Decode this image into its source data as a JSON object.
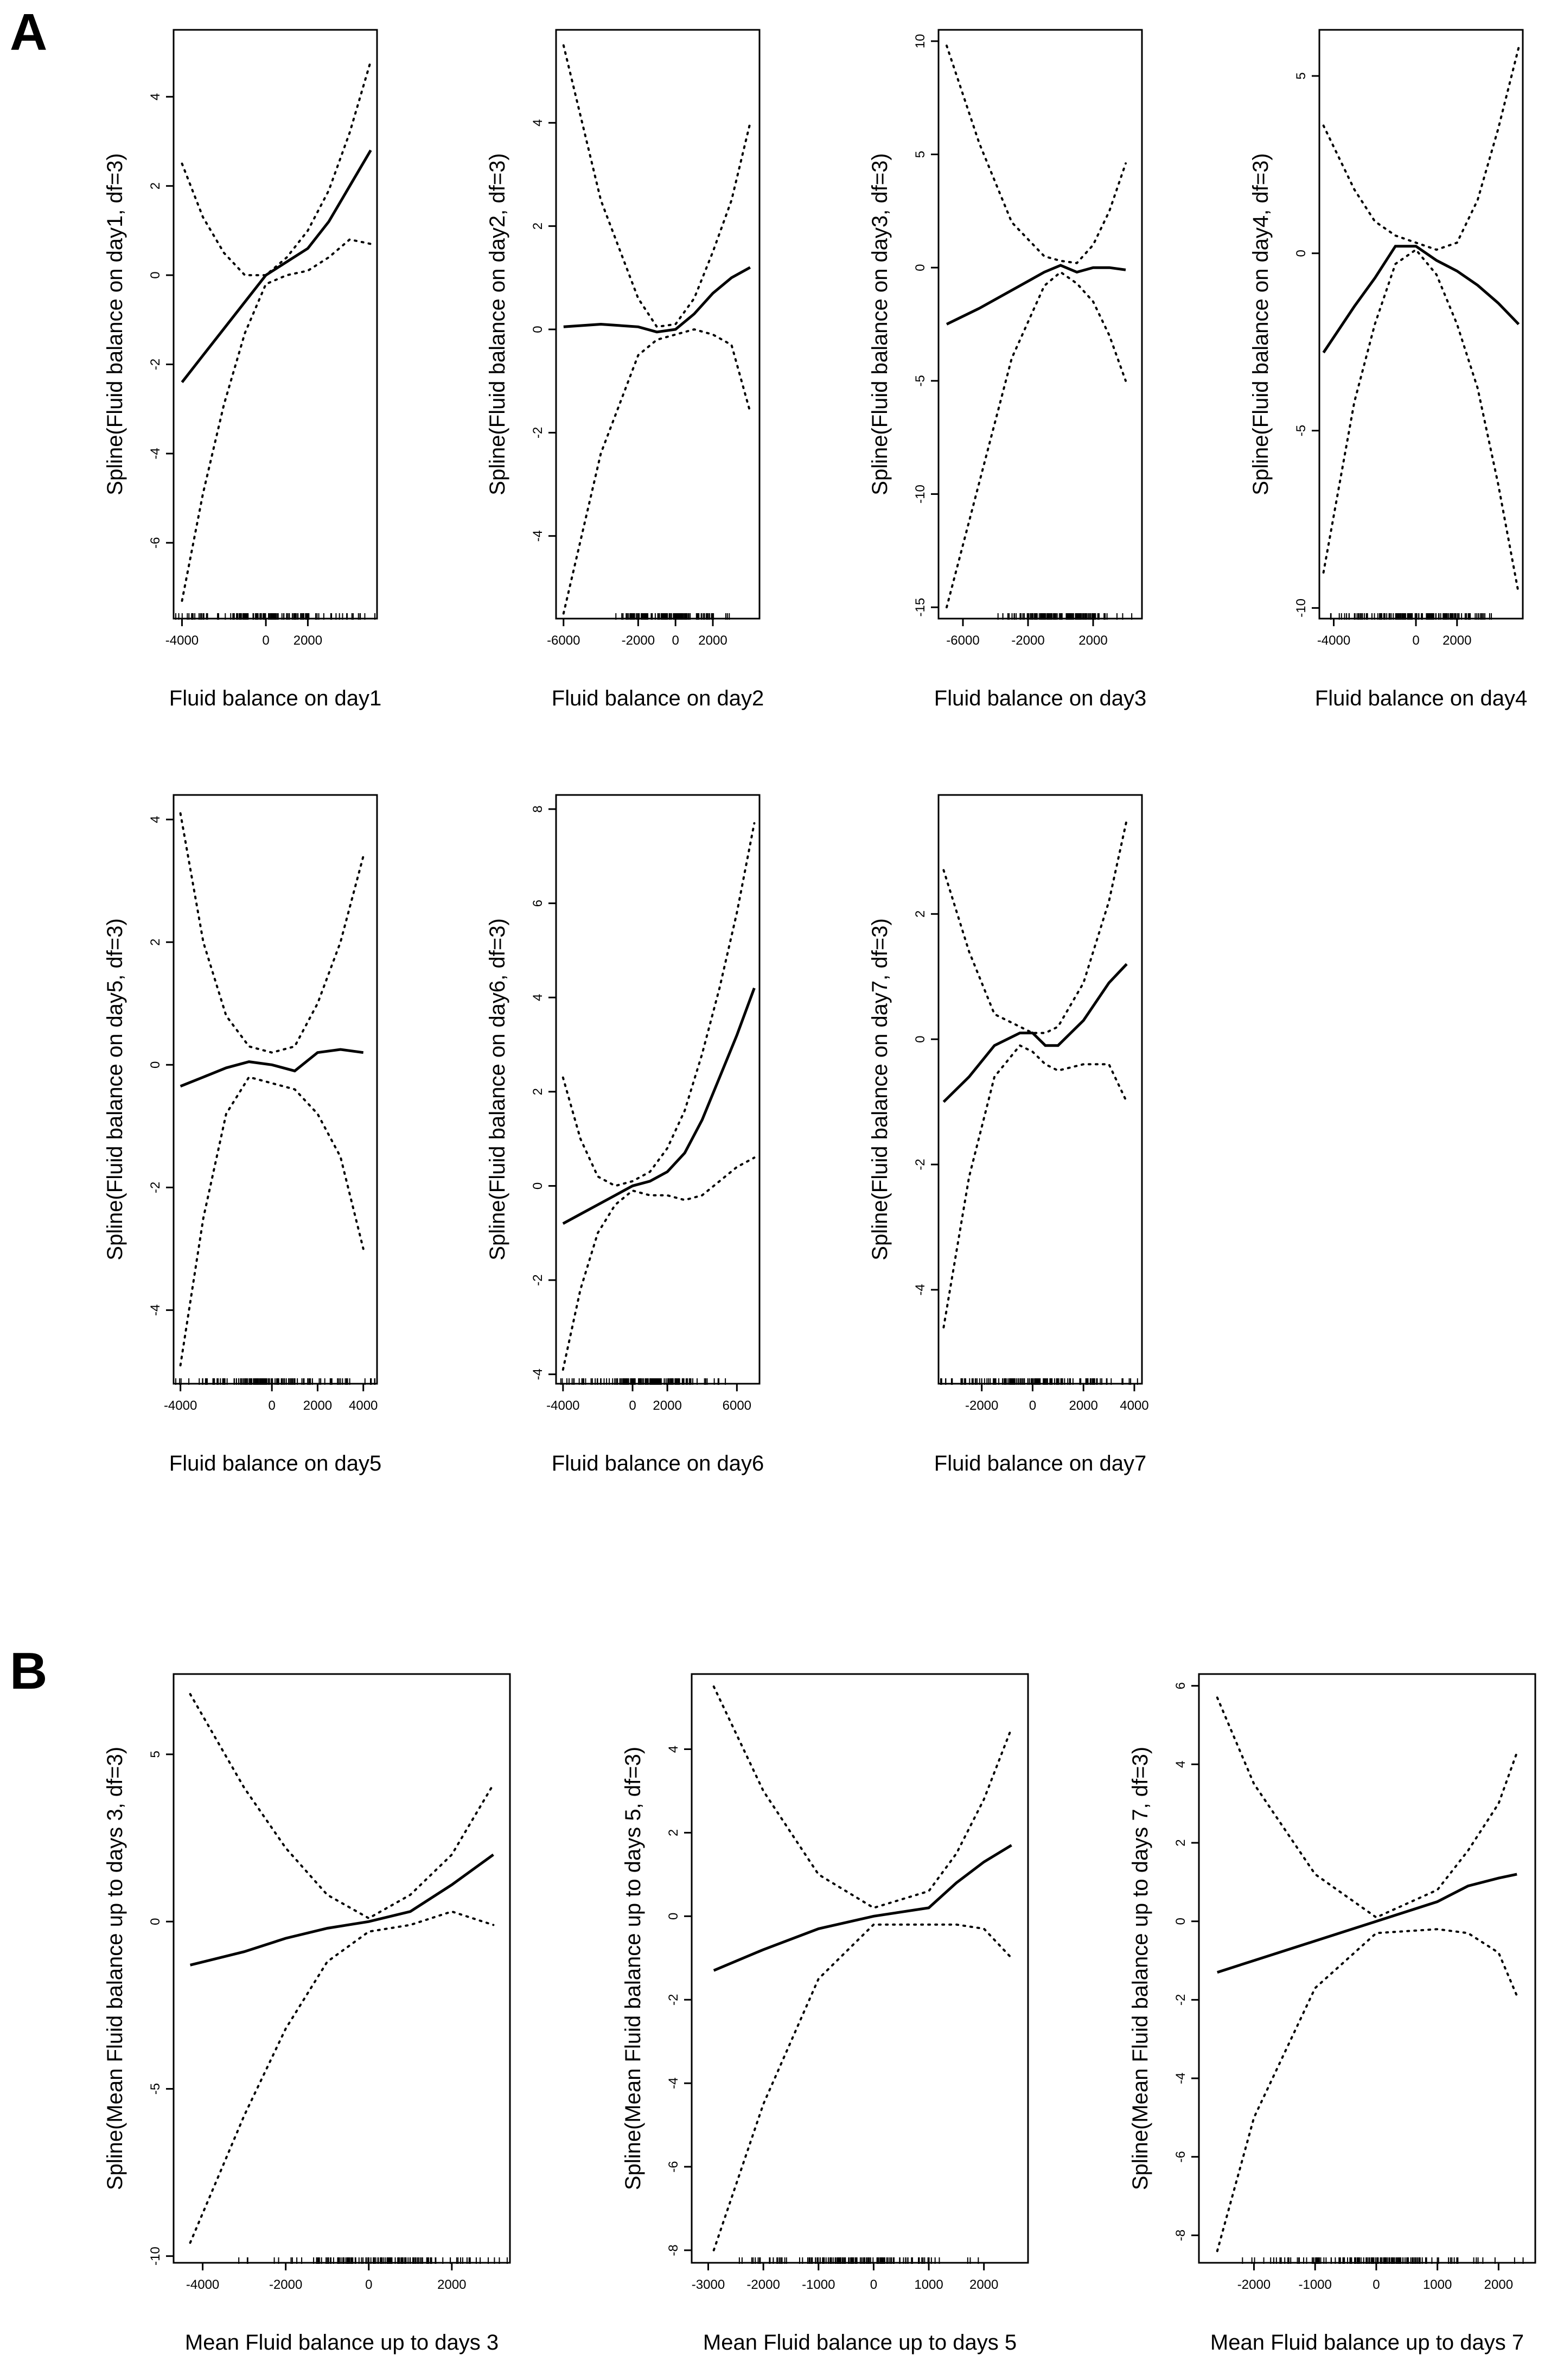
{
  "panel_labels": [
    "A",
    "B"
  ],
  "chart_data": [
    {
      "type": "line",
      "panel": "A",
      "xlabel": "Fluid balance on day1",
      "ylabel": "Spline(Fluid balance on day1, df=3)",
      "xlim": [
        -4400,
        5300
      ],
      "ylim": [
        -7.7,
        5.5
      ],
      "xticks": [
        -4000,
        0,
        2000
      ],
      "xtick_labels": [
        "-4000",
        "0",
        "2000"
      ],
      "yticks": [
        -6,
        -4,
        -2,
        0,
        2,
        4
      ],
      "ytick_labels": [
        "-6",
        "-4",
        "-2",
        "0",
        "2",
        "4"
      ],
      "x": [
        -4000,
        -3000,
        -2000,
        -1000,
        0,
        1000,
        2000,
        3000,
        4000,
        5000
      ],
      "fit": [
        -2.4,
        -1.8,
        -1.2,
        -0.6,
        0.0,
        0.3,
        0.6,
        1.2,
        2.0,
        2.8
      ],
      "upper": [
        2.5,
        1.3,
        0.5,
        0.0,
        0.0,
        0.4,
        1.0,
        1.9,
        3.2,
        4.8
      ],
      "lower": [
        -7.3,
        -4.9,
        -2.9,
        -1.3,
        -0.2,
        0.0,
        0.1,
        0.4,
        0.8,
        0.7
      ],
      "rug_range": [
        -4000,
        4800
      ]
    },
    {
      "type": "line",
      "panel": "A",
      "xlabel": "Fluid balance on day2",
      "ylabel": "Spline(Fluid balance on day2, df=3)",
      "xlim": [
        -6400,
        4500
      ],
      "ylim": [
        -5.6,
        5.8
      ],
      "xticks": [
        -6000,
        -2000,
        0,
        2000
      ],
      "xtick_labels": [
        "-6000",
        "-2000",
        "0",
        "2000"
      ],
      "yticks": [
        -4,
        -2,
        0,
        2,
        4
      ],
      "ytick_labels": [
        "-4",
        "-2",
        "0",
        "2",
        "4"
      ],
      "x": [
        -6000,
        -4000,
        -2000,
        -1000,
        0,
        1000,
        2000,
        3000,
        4000
      ],
      "fit": [
        0.05,
        0.1,
        0.05,
        -0.05,
        0.0,
        0.3,
        0.7,
        1.0,
        1.2
      ],
      "upper": [
        5.5,
        2.5,
        0.6,
        0.05,
        0.1,
        0.6,
        1.5,
        2.5,
        4.0
      ],
      "lower": [
        -5.5,
        -2.4,
        -0.5,
        -0.2,
        -0.1,
        0.0,
        -0.1,
        -0.3,
        -1.6
      ],
      "rug_range": [
        -2500,
        2500
      ]
    },
    {
      "type": "line",
      "panel": "A",
      "xlabel": "Fluid balance on day3",
      "ylabel": "Spline(Fluid balance on day3, df=3)",
      "xlim": [
        -7500,
        5000
      ],
      "ylim": [
        -15.5,
        10.5
      ],
      "xticks": [
        -6000,
        -2000,
        2000
      ],
      "xtick_labels": [
        "-6000",
        "-2000",
        "2000"
      ],
      "yticks": [
        -15,
        -10,
        -5,
        0,
        5,
        10
      ],
      "ytick_labels": [
        "-15",
        "-10",
        "-5",
        "0",
        "5",
        "10"
      ],
      "x": [
        -7000,
        -5000,
        -3000,
        -1000,
        0,
        1000,
        2000,
        3000,
        4000
      ],
      "fit": [
        -2.5,
        -1.8,
        -1.0,
        -0.2,
        0.1,
        -0.2,
        0.0,
        0.0,
        -0.1
      ],
      "upper": [
        9.8,
        5.5,
        2.0,
        0.5,
        0.3,
        0.2,
        1.0,
        2.5,
        4.6
      ],
      "lower": [
        -15.0,
        -9.5,
        -4.0,
        -0.8,
        -0.2,
        -0.7,
        -1.5,
        -3.0,
        -5.0
      ],
      "rug_range": [
        -3500,
        3500
      ]
    },
    {
      "type": "line",
      "panel": "A",
      "xlabel": "Fluid balance on day4",
      "ylabel": "Spline(Fluid balance on day4, df=3)",
      "xlim": [
        -4700,
        5200
      ],
      "ylim": [
        -10.3,
        6.3
      ],
      "xticks": [
        -4000,
        0,
        2000
      ],
      "xtick_labels": [
        "-4000",
        "0",
        "2000"
      ],
      "yticks": [
        -10,
        -5,
        0,
        5
      ],
      "ytick_labels": [
        "-10",
        "-5",
        "0",
        "5"
      ],
      "x": [
        -4500,
        -3000,
        -2000,
        -1000,
        0,
        1000,
        2000,
        3000,
        4000,
        5000
      ],
      "fit": [
        -2.8,
        -1.5,
        -0.7,
        0.2,
        0.2,
        -0.2,
        -0.5,
        -0.9,
        -1.4,
        -2.0
      ],
      "upper": [
        3.6,
        1.8,
        0.9,
        0.5,
        0.3,
        0.1,
        0.3,
        1.5,
        3.5,
        5.8
      ],
      "lower": [
        -9.0,
        -4.2,
        -2.0,
        -0.3,
        0.1,
        -0.6,
        -2.0,
        -3.8,
        -6.5,
        -9.6
      ],
      "rug_range": [
        -3500,
        3500
      ]
    },
    {
      "type": "line",
      "panel": "A",
      "xlabel": "Fluid balance on day5",
      "ylabel": "Spline(Fluid balance on day5, df=3)",
      "xlim": [
        -4300,
        4600
      ],
      "ylim": [
        -5.2,
        4.4
      ],
      "xticks": [
        -4000,
        0,
        2000,
        4000
      ],
      "xtick_labels": [
        "-4000",
        "0",
        "2000",
        "4000"
      ],
      "yticks": [
        -4,
        -2,
        0,
        2,
        4
      ],
      "ytick_labels": [
        "-4",
        "-2",
        "0",
        "2",
        "4"
      ],
      "x": [
        -4000,
        -3000,
        -2000,
        -1000,
        0,
        1000,
        2000,
        3000,
        4000
      ],
      "fit": [
        -0.35,
        -0.2,
        -0.05,
        0.05,
        0.0,
        -0.1,
        0.2,
        0.25,
        0.2
      ],
      "upper": [
        4.1,
        2.0,
        0.8,
        0.3,
        0.2,
        0.3,
        1.0,
        2.0,
        3.4
      ],
      "lower": [
        -4.9,
        -2.5,
        -0.8,
        -0.2,
        -0.3,
        -0.4,
        -0.8,
        -1.5,
        -3.0
      ],
      "rug_range": [
        -4000,
        4000
      ]
    },
    {
      "type": "line",
      "panel": "A",
      "xlabel": "Fluid balance on day6",
      "ylabel": "Spline(Fluid balance on day6, df=3)",
      "xlim": [
        -4400,
        7300
      ],
      "ylim": [
        -4.2,
        8.3
      ],
      "xticks": [
        -4000,
        0,
        2000,
        6000
      ],
      "xtick_labels": [
        "-4000",
        "0",
        "2000",
        "6000"
      ],
      "yticks": [
        -4,
        -2,
        0,
        2,
        4,
        6,
        8
      ],
      "ytick_labels": [
        "-4",
        "-2",
        "0",
        "2",
        "4",
        "6",
        "8"
      ],
      "x": [
        -4000,
        -3000,
        -2000,
        -1000,
        0,
        1000,
        2000,
        3000,
        4000,
        5000,
        6000,
        7000
      ],
      "fit": [
        -0.8,
        -0.6,
        -0.4,
        -0.2,
        0.0,
        0.1,
        0.3,
        0.7,
        1.4,
        2.3,
        3.2,
        4.2
      ],
      "upper": [
        2.3,
        1.0,
        0.2,
        0.0,
        0.1,
        0.3,
        0.8,
        1.6,
        2.8,
        4.2,
        5.8,
        7.7
      ],
      "lower": [
        -3.9,
        -2.2,
        -1.0,
        -0.4,
        -0.1,
        -0.2,
        -0.2,
        -0.3,
        -0.2,
        0.1,
        0.4,
        0.6
      ],
      "rug_range": [
        -3500,
        5000
      ]
    },
    {
      "type": "line",
      "panel": "A",
      "xlabel": "Fluid balance on day7",
      "ylabel": "Spline(Fluid balance on day7, df=3)",
      "xlim": [
        -3700,
        4300
      ],
      "ylim": [
        -5.5,
        3.9
      ],
      "xticks": [
        -2000,
        0,
        2000,
        4000
      ],
      "xtick_labels": [
        "-2000",
        "0",
        "2000",
        "4000"
      ],
      "yticks": [
        -4,
        -2,
        0,
        2
      ],
      "ytick_labels": [
        "-4",
        "-2",
        "0",
        "2"
      ],
      "x": [
        -3500,
        -2500,
        -1500,
        -500,
        0,
        500,
        1000,
        2000,
        3000,
        3700
      ],
      "fit": [
        -1.0,
        -0.6,
        -0.1,
        0.1,
        0.1,
        -0.1,
        -0.1,
        0.3,
        0.9,
        1.2
      ],
      "upper": [
        2.7,
        1.4,
        0.4,
        0.2,
        0.1,
        0.1,
        0.2,
        0.9,
        2.2,
        3.5
      ],
      "lower": [
        -4.6,
        -2.2,
        -0.6,
        -0.1,
        -0.2,
        -0.4,
        -0.5,
        -0.4,
        -0.4,
        -1.0
      ],
      "rug_range": [
        -3500,
        3500
      ]
    },
    {
      "type": "line",
      "panel": "B",
      "xlabel": "Mean Fluid balance up to days 3",
      "ylabel": "Spline(Mean Fluid balance up to days 3, df=3)",
      "xlim": [
        -4700,
        3400
      ],
      "ylim": [
        -10.2,
        7.4
      ],
      "xticks": [
        -4000,
        -2000,
        0,
        2000
      ],
      "xtick_labels": [
        "-4000",
        "-2000",
        "0",
        "2000"
      ],
      "yticks": [
        -10,
        -5,
        0,
        5
      ],
      "ytick_labels": [
        "-10",
        "-5",
        "0",
        "5"
      ],
      "x": [
        -4300,
        -3000,
        -2000,
        -1000,
        0,
        1000,
        2000,
        3000
      ],
      "fit": [
        -1.3,
        -0.9,
        -0.5,
        -0.2,
        0.0,
        0.3,
        1.1,
        2.0
      ],
      "upper": [
        6.8,
        4.0,
        2.2,
        0.8,
        0.1,
        0.8,
        2.0,
        4.1
      ],
      "lower": [
        -9.6,
        -5.8,
        -3.2,
        -1.2,
        -0.3,
        -0.1,
        0.3,
        -0.1
      ],
      "rug_range": [
        -2500,
        3000
      ]
    },
    {
      "type": "line",
      "panel": "B",
      "xlabel": "Mean Fluid balance up to days 5",
      "ylabel": "Spline(Mean Fluid balance up to days 5, df=3)",
      "xlim": [
        -3300,
        2800
      ],
      "ylim": [
        -8.3,
        5.8
      ],
      "xticks": [
        -3000,
        -2000,
        -1000,
        0,
        1000,
        2000
      ],
      "xtick_labels": [
        "-3000",
        "-2000",
        "-1000",
        "0",
        "1000",
        "2000"
      ],
      "yticks": [
        -8,
        -6,
        -4,
        -2,
        0,
        2,
        4
      ],
      "ytick_labels": [
        "-8",
        "-6",
        "-4",
        "-2",
        "0",
        "2",
        "4"
      ],
      "x": [
        -2900,
        -2000,
        -1000,
        0,
        1000,
        1500,
        2000,
        2500
      ],
      "fit": [
        -1.3,
        -0.8,
        -0.3,
        0.0,
        0.2,
        0.8,
        1.3,
        1.7
      ],
      "upper": [
        5.5,
        3.0,
        1.0,
        0.2,
        0.6,
        1.5,
        2.8,
        4.5
      ],
      "lower": [
        -8.0,
        -4.5,
        -1.5,
        -0.2,
        -0.2,
        -0.2,
        -0.3,
        -1.0
      ],
      "rug_range": [
        -2200,
        1600
      ]
    },
    {
      "type": "line",
      "panel": "B",
      "xlabel": "Mean Fluid balance up to days 7",
      "ylabel": "Spline(Mean Fluid balance up to days 7, df=3)",
      "xlim": [
        -2900,
        2600
      ],
      "ylim": [
        -8.7,
        6.3
      ],
      "xticks": [
        -2000,
        -1000,
        0,
        1000,
        2000
      ],
      "xtick_labels": [
        "-2000",
        "-1000",
        "0",
        "1000",
        "2000"
      ],
      "yticks": [
        -8,
        -6,
        -4,
        -2,
        0,
        2,
        4,
        6
      ],
      "ytick_labels": [
        "-8",
        "-6",
        "-4",
        "-2",
        "0",
        "2",
        "4",
        "6"
      ],
      "x": [
        -2600,
        -2000,
        -1000,
        0,
        1000,
        1500,
        2000,
        2300
      ],
      "fit": [
        -1.3,
        -1.0,
        -0.5,
        0.0,
        0.5,
        0.9,
        1.1,
        1.2
      ],
      "upper": [
        5.7,
        3.5,
        1.2,
        0.1,
        0.8,
        1.8,
        3.0,
        4.3
      ],
      "lower": [
        -8.4,
        -5.0,
        -1.7,
        -0.3,
        -0.2,
        -0.3,
        -0.8,
        -1.9
      ],
      "rug_range": [
        -2000,
        1900
      ]
    }
  ]
}
